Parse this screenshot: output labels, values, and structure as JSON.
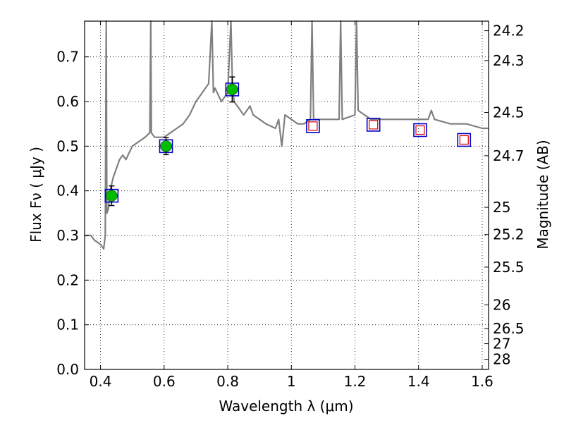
{
  "chart_data": {
    "type": "scatter",
    "xlabel": "Wavelength  λ (μm)",
    "ylabel": "Flux  Fν  ( μJy )",
    "y2label": "Magnitude (AB)",
    "xlim": [
      0.35,
      1.62
    ],
    "ylim": [
      0.0,
      0.78
    ],
    "grid": true,
    "x_ticks": [
      0.4,
      0.6,
      0.8,
      1.0,
      1.2,
      1.4,
      1.6
    ],
    "x_tick_labels": [
      "0.4",
      "0.6",
      "0.8",
      "1",
      "1.2",
      "1.4",
      "1.6"
    ],
    "y_ticks": [
      0.0,
      0.1,
      0.2,
      0.3,
      0.4,
      0.5,
      0.6,
      0.7
    ],
    "y_tick_labels": [
      "0.0",
      "0.1",
      "0.2",
      "0.3",
      "0.4",
      "0.5",
      "0.6",
      "0.7"
    ],
    "mag_ticks": [
      24.2,
      24.3,
      24.5,
      24.7,
      25,
      25.2,
      25.5,
      26,
      26.5,
      27,
      28
    ],
    "mag_tick_labels": [
      "24.2",
      "24.3",
      "24.5",
      "24.7",
      "25",
      "25.2",
      "25.5",
      "26",
      "26.5",
      "27",
      "28"
    ],
    "series": [
      {
        "kind": "model_spectrum",
        "color": "#808080",
        "x": [
          0.35,
          0.37,
          0.38,
          0.4,
          0.41,
          0.415,
          0.418,
          0.42,
          0.425,
          0.43,
          0.44,
          0.45,
          0.46,
          0.47,
          0.48,
          0.5,
          0.52,
          0.54,
          0.555,
          0.558,
          0.56,
          0.57,
          0.6,
          0.62,
          0.64,
          0.66,
          0.68,
          0.7,
          0.72,
          0.74,
          0.75,
          0.755,
          0.76,
          0.78,
          0.8,
          0.81,
          0.815,
          0.82,
          0.85,
          0.87,
          0.88,
          0.9,
          0.92,
          0.95,
          0.96,
          0.97,
          0.98,
          1.0,
          1.02,
          1.04,
          1.06,
          1.065,
          1.07,
          1.1,
          1.15,
          1.155,
          1.16,
          1.2,
          1.205,
          1.21,
          1.25,
          1.3,
          1.35,
          1.4,
          1.43,
          1.44,
          1.45,
          1.5,
          1.55,
          1.6,
          1.62
        ],
        "y": [
          0.3,
          0.3,
          0.29,
          0.28,
          0.27,
          0.3,
          0.78,
          0.35,
          0.36,
          0.4,
          0.43,
          0.45,
          0.47,
          0.48,
          0.47,
          0.5,
          0.51,
          0.52,
          0.53,
          0.78,
          0.53,
          0.52,
          0.52,
          0.53,
          0.54,
          0.55,
          0.57,
          0.6,
          0.62,
          0.64,
          0.78,
          0.62,
          0.63,
          0.6,
          0.62,
          0.78,
          0.63,
          0.6,
          0.57,
          0.59,
          0.57,
          0.56,
          0.55,
          0.54,
          0.56,
          0.5,
          0.57,
          0.56,
          0.55,
          0.55,
          0.56,
          0.78,
          0.56,
          0.56,
          0.56,
          0.78,
          0.56,
          0.57,
          0.78,
          0.58,
          0.56,
          0.56,
          0.56,
          0.56,
          0.56,
          0.58,
          0.56,
          0.55,
          0.55,
          0.54,
          0.54
        ]
      },
      {
        "kind": "observed",
        "marker": "circle",
        "color": "#00bb00",
        "x": [
          0.435,
          0.606,
          0.814
        ],
        "y": [
          0.389,
          0.5,
          0.627
        ],
        "yerr": [
          0.022,
          0.019,
          0.028
        ]
      },
      {
        "kind": "model_band_flux",
        "marker": "square",
        "color": "#0000cc",
        "x": [
          0.435,
          0.606,
          0.814,
          1.068,
          1.258,
          1.405,
          1.543
        ],
        "y": [
          0.389,
          0.5,
          0.627,
          0.545,
          0.548,
          0.536,
          0.514
        ]
      },
      {
        "kind": "upper_square",
        "marker": "square",
        "color": "#dd0000",
        "x": [
          1.068,
          1.258,
          1.405,
          1.543
        ],
        "y": [
          0.545,
          0.548,
          0.536,
          0.514
        ]
      }
    ]
  }
}
